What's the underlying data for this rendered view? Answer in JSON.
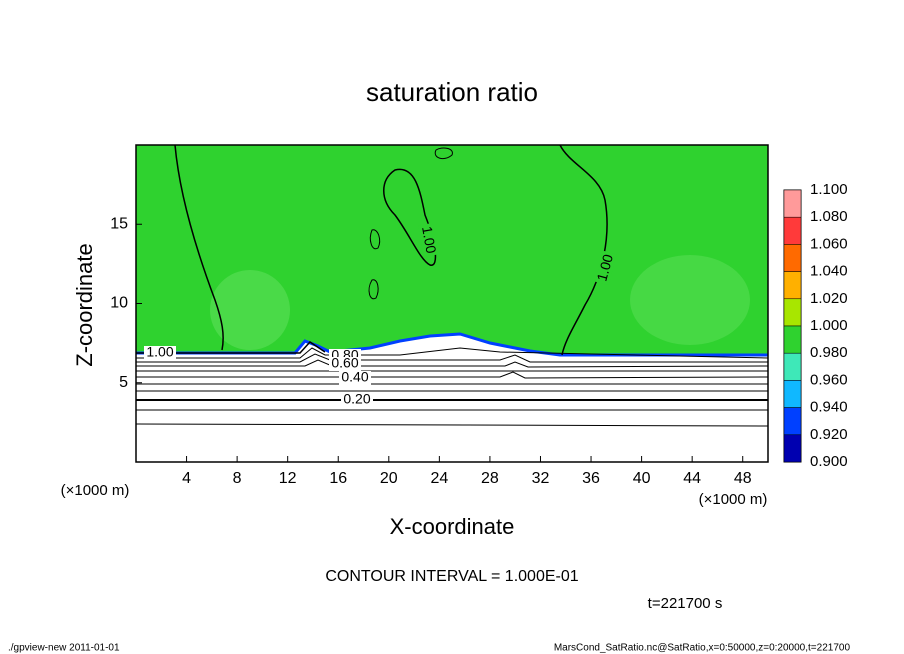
{
  "chart_data": {
    "type": "contour",
    "title": "saturation ratio",
    "xlabel": "X-coordinate",
    "ylabel": "Z-coordinate",
    "x_unit": "(×1000 m)",
    "y_unit": "(×1000 m)",
    "xlim": [
      0,
      50
    ],
    "xticks": [
      4,
      8,
      12,
      16,
      20,
      24,
      28,
      32,
      36,
      40,
      44,
      48
    ],
    "ylim": [
      0,
      20
    ],
    "yticks": [
      5,
      10,
      15
    ],
    "contour_labels": [
      "1.00",
      "1.00",
      "1.00",
      "0.80",
      "0.60",
      "0.40",
      "0.20"
    ],
    "colorbar": {
      "levels": [
        {
          "value": 1.1,
          "label": "1.100"
        },
        {
          "value": 1.08,
          "label": "1.080"
        },
        {
          "value": 1.06,
          "label": "1.060"
        },
        {
          "value": 1.04,
          "label": "1.040"
        },
        {
          "value": 1.02,
          "label": "1.020"
        },
        {
          "value": 1.0,
          "label": "1.000"
        },
        {
          "value": 0.98,
          "label": "0.980"
        },
        {
          "value": 0.96,
          "label": "0.960"
        },
        {
          "value": 0.94,
          "label": "0.940"
        },
        {
          "value": 0.92,
          "label": "0.920"
        },
        {
          "value": 0.9,
          "label": "0.900"
        }
      ],
      "colors": [
        "#ff9a9a",
        "#ff3a3a",
        "#ff6a00",
        "#ffb000",
        "#a8e600",
        "#2fd22f",
        "#3ee8b8",
        "#10b8ff",
        "#0040ff",
        "#0000b0"
      ]
    },
    "contour_interval": "CONTOUR INTERVAL = 1.000E-01",
    "time": "t=221700 s",
    "footer_left": "./gpview-new  2011-01-01",
    "footer_right": "MarsCond_SatRatio.nc@SatRatio,x=0:50000,z=0:20000,t=221700"
  }
}
